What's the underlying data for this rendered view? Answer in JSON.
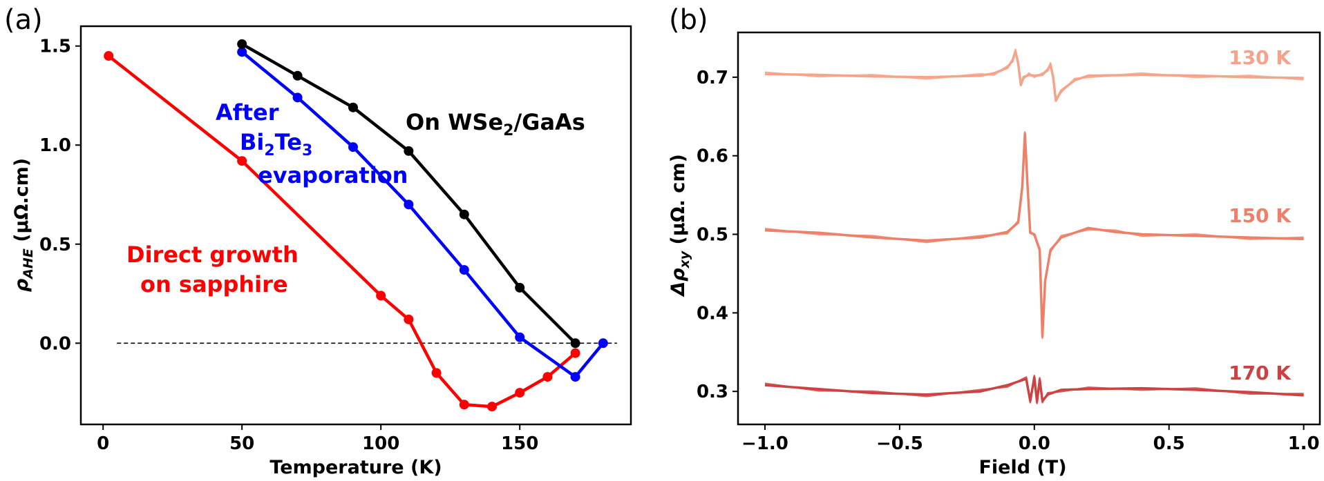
{
  "chart_data": [
    {
      "type": "line",
      "panel_label": "(a)",
      "xlabel": "Temperature (K)",
      "ylabel_main": "ρ",
      "ylabel_sub": "AHE",
      "ylabel_unit": " (μΩ.cm)",
      "xlim": [
        -8,
        190
      ],
      "ylim": [
        -0.41,
        1.6
      ],
      "xticks": [
        0,
        50,
        100,
        150
      ],
      "yticks": [
        0.0,
        0.5,
        1.0,
        1.5
      ],
      "xtick_labels": [
        "0",
        "50",
        "100",
        "150"
      ],
      "ytick_labels": [
        "0.0",
        "0.5",
        "1.0",
        "1.5"
      ],
      "reference_line": {
        "y": 0.0,
        "x_from": 5,
        "x_to": 185,
        "style": "dashed"
      },
      "series": [
        {
          "name": "On WSe2/GaAs",
          "color": "#000000",
          "x": [
            50,
            70,
            90,
            110,
            130,
            150,
            170
          ],
          "y": [
            1.51,
            1.35,
            1.19,
            0.97,
            0.65,
            0.28,
            0.0
          ]
        },
        {
          "name": "After Bi2Te3 evaporation",
          "color": "#0000ff",
          "x": [
            50,
            70,
            90,
            110,
            130,
            150,
            170,
            180
          ],
          "y": [
            1.47,
            1.24,
            0.99,
            0.7,
            0.37,
            0.03,
            -0.17,
            0.0
          ]
        },
        {
          "name": "Direct growth on sapphire",
          "color": "#ff0000",
          "x": [
            2,
            50,
            100,
            110,
            120,
            130,
            140,
            150,
            160,
            170
          ],
          "y": [
            1.45,
            0.92,
            0.24,
            0.12,
            -0.15,
            -0.31,
            -0.32,
            -0.25,
            -0.17,
            -0.05
          ]
        }
      ],
      "annotations": {
        "black": {
          "text_pre": "On WSe",
          "sub": "2",
          "text_post": "/GaAs"
        },
        "blue_line1": "After",
        "blue_line2_a": "Bi",
        "blue_line2_sub1": "2",
        "blue_line2_b": "Te",
        "blue_line2_sub2": "3",
        "blue_line3": "evaporation",
        "red_line1": "Direct growth",
        "red_line2": "on sapphire"
      }
    },
    {
      "type": "line",
      "panel_label": "(b)",
      "xlabel": "Field (T)",
      "ylabel_pre": "Δρ",
      "ylabel_sub": "xy",
      "ylabel_unit": " (μΩ. cm)",
      "xlim": [
        -1.1,
        1.06
      ],
      "ylim": [
        0.258,
        0.757
      ],
      "xticks": [
        -1.0,
        -0.5,
        0.0,
        0.5,
        1.0
      ],
      "yticks": [
        0.3,
        0.4,
        0.5,
        0.6,
        0.7
      ],
      "xtick_labels": [
        "−1.0",
        "−0.5",
        "0.0",
        "0.5",
        "1.0"
      ],
      "ytick_labels": [
        "0.3",
        "0.4",
        "0.5",
        "0.6",
        "0.7"
      ],
      "curves": [
        {
          "label": "130 K",
          "color": "#f5a48a",
          "x": [
            -1.0,
            -0.8,
            -0.6,
            -0.4,
            -0.2,
            -0.15,
            -0.1,
            -0.08,
            -0.07,
            -0.06,
            -0.05,
            -0.04,
            -0.02,
            0.0,
            0.03,
            0.05,
            0.06,
            0.07,
            0.08,
            0.1,
            0.15,
            0.2,
            0.4,
            0.6,
            0.8,
            1.0
          ],
          "y": [
            0.704,
            0.703,
            0.701,
            0.7,
            0.702,
            0.705,
            0.712,
            0.722,
            0.733,
            0.718,
            0.69,
            0.7,
            0.703,
            0.702,
            0.703,
            0.71,
            0.716,
            0.7,
            0.67,
            0.683,
            0.696,
            0.702,
            0.703,
            0.702,
            0.7,
            0.699
          ]
        },
        {
          "label": "150 K",
          "color": "#ec8068",
          "x": [
            -1.0,
            -0.8,
            -0.6,
            -0.4,
            -0.2,
            -0.1,
            -0.06,
            -0.045,
            -0.035,
            -0.025,
            -0.015,
            0.0,
            0.02,
            0.03,
            0.04,
            0.06,
            0.1,
            0.2,
            0.3,
            0.4,
            0.6,
            0.8,
            1.0
          ],
          "y": [
            0.505,
            0.502,
            0.496,
            0.492,
            0.496,
            0.503,
            0.515,
            0.56,
            0.628,
            0.56,
            0.502,
            0.5,
            0.48,
            0.37,
            0.44,
            0.48,
            0.496,
            0.508,
            0.503,
            0.5,
            0.498,
            0.496,
            0.494
          ]
        },
        {
          "label": "170 K",
          "color": "#cc4242",
          "x": [
            -1.0,
            -0.8,
            -0.6,
            -0.4,
            -0.2,
            -0.1,
            -0.03,
            -0.015,
            0.0,
            0.01,
            0.02,
            0.03,
            0.05,
            0.1,
            0.2,
            0.4,
            0.6,
            0.8,
            1.0
          ],
          "y": [
            0.308,
            0.303,
            0.298,
            0.296,
            0.3,
            0.308,
            0.316,
            0.288,
            0.318,
            0.287,
            0.315,
            0.288,
            0.296,
            0.302,
            0.303,
            0.304,
            0.302,
            0.299,
            0.295
          ]
        }
      ]
    }
  ]
}
